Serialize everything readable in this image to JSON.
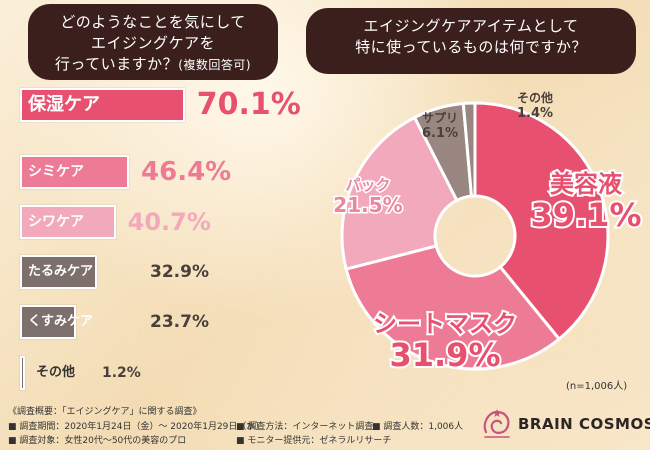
{
  "question1": {
    "line1": "どのようなことを気にして",
    "line2": "エイジングケアを",
    "line3": "行っていますか？",
    "line3_sub": "(複数回答可)"
  },
  "question2": {
    "line1": "エイジングケアアイテムとして",
    "line2": "特に使っているものは何ですか？"
  },
  "sample_note": "(n=1,006人)",
  "footer": {
    "overview": "《調査概要：「エイジングケア」に関する調査》",
    "period": "■ 調査期間：2020年1月24日（金）～ 2020年1月29日（水）",
    "method": "■ 調査方法：インターネット調査",
    "count": "■ 調査人数：1,006人",
    "target": "■ 調査対象：女性20代～50代の美容のプロ",
    "provider": "■ モニター提供元：ゼネラルリサーチ"
  },
  "logo": {
    "text": "BRAIN COSMOS",
    "icon": "brain-cosmos-emblem-icon",
    "color": "#c8527a"
  },
  "chart_data": [
    {
      "type": "bar",
      "orientation": "horizontal",
      "categories": [
        "保湿ケア",
        "シミケア",
        "シワケア",
        "たるみケア",
        "くすみケア",
        "その他"
      ],
      "values": [
        70.1,
        46.4,
        40.7,
        32.9,
        23.7,
        1.2
      ],
      "value_labels": [
        "70.1%",
        "46.4%",
        "40.7%",
        "32.9%",
        "23.7%",
        "1.2%"
      ],
      "colors": [
        "#e8506f",
        "#ee7b96",
        "#f3a9bc",
        "#7d6f6b",
        "#7d6f6b",
        "#7d6f6b"
      ],
      "xlim": [
        0,
        100
      ]
    },
    {
      "type": "pie",
      "style": "donut",
      "categories": [
        "美容液",
        "シートマスク",
        "パック",
        "サプリ",
        "その他"
      ],
      "values": [
        39.1,
        31.9,
        21.5,
        6.1,
        1.4
      ],
      "value_labels": [
        "39.1%",
        "31.9%",
        "21.5%",
        "6.1%",
        "1.4%"
      ],
      "colors": [
        "#e8506f",
        "#ee7b96",
        "#f3a9bc",
        "#9a8680",
        "#9a8680"
      ],
      "start": "top",
      "direction": "clockwise"
    }
  ]
}
